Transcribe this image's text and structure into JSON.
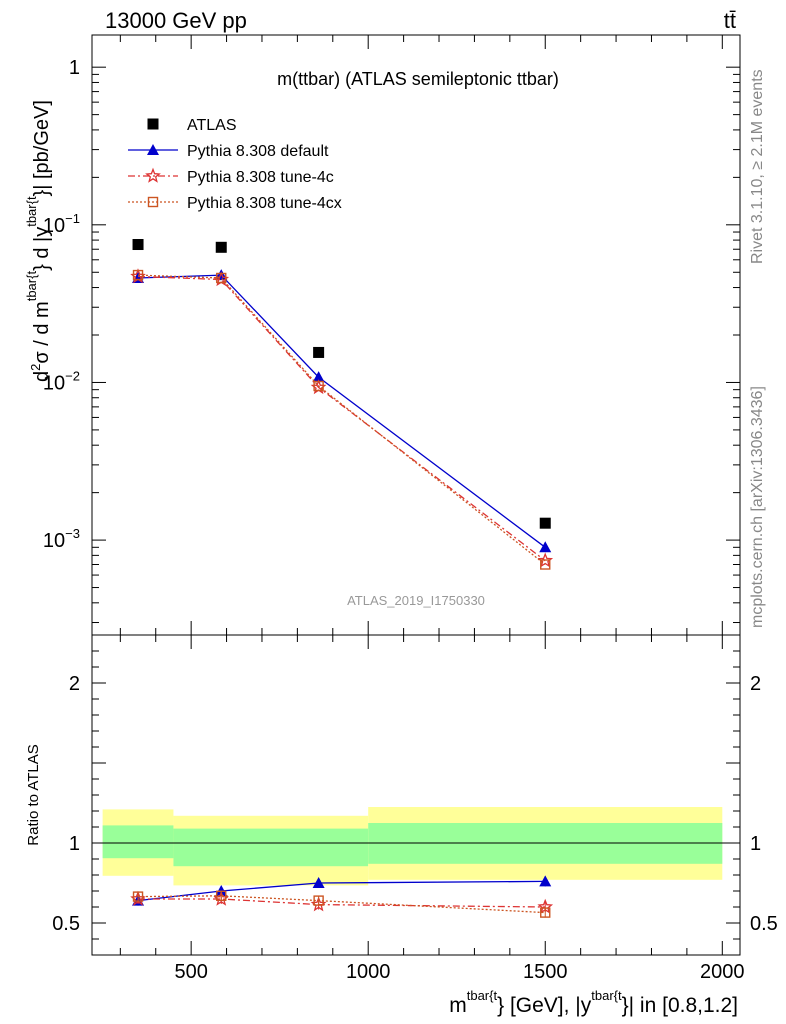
{
  "header": {
    "energy_label": "13000 GeV pp",
    "process_label": "tt̄"
  },
  "side_labels": {
    "rivet": "Rivet 3.1.10, ≥ 2.1M events",
    "mcplots": "mcplots.cern.ch [arXiv:1306.3436]"
  },
  "chart_data": [
    {
      "type": "line",
      "title": "m(ttbar) (ATLAS semileptonic ttbar)",
      "analysis_label": "ATLAS_2019_I1750330",
      "ylabel_parts": {
        "d2": "d",
        "sup2": "2",
        "sigma": "σ / d m",
        "sup_a": "tbar{t",
        "mid": "} d |y",
        "sup_b": "tbar{t",
        "tail": "}| [pb/GeV]"
      },
      "xlabel_parts": {
        "m": "m",
        "sup_a": "tbar{t",
        "mid": "} [GeV], |y",
        "sup_b": "tbar{t",
        "tail": "}| in [0.8,1.2]"
      },
      "yscale": "log",
      "xlim": [
        220,
        2050
      ],
      "ylim": [
        0.00025,
        1.6
      ],
      "y_ticks": [
        {
          "value": 1,
          "base": "1",
          "exp": ""
        },
        {
          "value": 0.1,
          "base": "10",
          "exp": "−1"
        },
        {
          "value": 0.01,
          "base": "10",
          "exp": "−2"
        },
        {
          "value": 0.001,
          "base": "10",
          "exp": "−3"
        }
      ],
      "legend_position": "top-left",
      "series": [
        {
          "name": "ATLAS",
          "color": "#000000",
          "marker": "square",
          "x": [
            350,
            585,
            860,
            1500
          ],
          "y": [
            0.075,
            0.072,
            0.0155,
            0.00128
          ]
        },
        {
          "name": "Pythia 8.308 default",
          "color": "#0000cc",
          "marker": "triangle",
          "x": [
            350,
            585,
            860,
            1500
          ],
          "y": [
            0.046,
            0.048,
            0.0108,
            0.0009
          ]
        },
        {
          "name": "Pythia 8.308 tune-4c",
          "color": "#dd3333",
          "marker": "star",
          "x": [
            350,
            585,
            860,
            1500
          ],
          "y": [
            0.047,
            0.045,
            0.0093,
            0.00074
          ]
        },
        {
          "name": "Pythia 8.308 tune-4cx",
          "color": "#cc5522",
          "marker": "open-square",
          "x": [
            350,
            585,
            860,
            1500
          ],
          "y": [
            0.048,
            0.046,
            0.0095,
            0.0007
          ]
        }
      ]
    },
    {
      "type": "line",
      "ylabel": "Ratio to ATLAS",
      "xlim": [
        220,
        2050
      ],
      "ylim": [
        0.3,
        2.3
      ],
      "x_ticks": [
        "500",
        "1000",
        "1500",
        "2000"
      ],
      "y_ticks": [
        "2",
        "1",
        "0.5"
      ],
      "bands": [
        {
          "x0": 250,
          "x1": 450,
          "inner": [
            0.905,
            1.11
          ],
          "outer": [
            0.795,
            1.21
          ]
        },
        {
          "x0": 450,
          "x1": 1000,
          "inner": [
            0.855,
            1.09
          ],
          "outer": [
            0.735,
            1.17
          ]
        },
        {
          "x0": 1000,
          "x1": 2000,
          "inner": [
            0.87,
            1.125
          ],
          "outer": [
            0.77,
            1.225
          ]
        }
      ],
      "series": [
        {
          "name": "Pythia 8.308 default",
          "x": [
            350,
            585,
            860,
            1500
          ],
          "y": [
            0.64,
            0.7,
            0.75,
            0.76
          ]
        },
        {
          "name": "Pythia 8.308 tune-4c",
          "x": [
            350,
            585,
            860,
            1500
          ],
          "y": [
            0.65,
            0.65,
            0.615,
            0.6
          ]
        },
        {
          "name": "Pythia 8.308 tune-4cx",
          "x": [
            350,
            585,
            860,
            1500
          ],
          "y": [
            0.665,
            0.67,
            0.64,
            0.565
          ]
        }
      ]
    }
  ]
}
